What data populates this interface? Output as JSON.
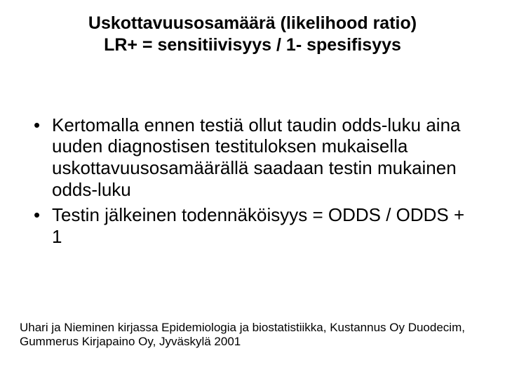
{
  "title": {
    "line1": "Uskottavuusosamäärä (likelihood ratio)",
    "line2": "LR+ = sensitiivisyys / 1- spesifisyys"
  },
  "bullets": [
    "Kertomalla ennen testiä ollut taudin odds-luku aina uuden diagnostisen testituloksen mukaisella uskottavuusosamäärällä saadaan testin mukainen odds-luku",
    "Testin jälkeinen todennäköisyys = ODDS / ODDS + 1"
  ],
  "footer": "Uhari ja Nieminen kirjassa Epidemiologia ja biostatistiikka, Kustannus Oy Duodecim, Gummerus Kirjapaino Oy, Jyväskylä 2001"
}
